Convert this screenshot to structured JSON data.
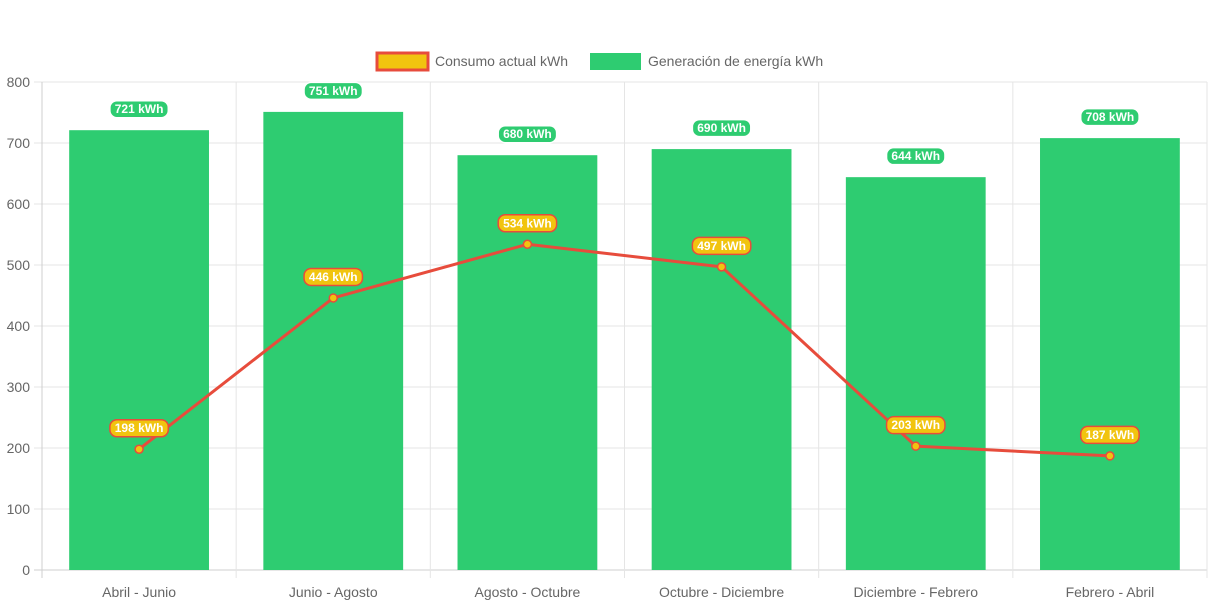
{
  "chart_data": {
    "type": "bar",
    "categories": [
      "Abril - Junio",
      "Junio - Agosto",
      "Agosto - Octubre",
      "Octubre - Diciembre",
      "Diciembre - Febrero",
      "Febrero - Abril"
    ],
    "series": [
      {
        "name": "Consumo actual kWh",
        "type": "line",
        "values": [
          198,
          446,
          534,
          497,
          203,
          187
        ],
        "labels": [
          "198 kWh",
          "446 kWh",
          "534 kWh",
          "497 kWh",
          "203 kWh",
          "187 kWh"
        ],
        "color": "#e74c3c",
        "fill_color": "#f1c40f"
      },
      {
        "name": "Generación de energía kWh",
        "type": "bar",
        "values": [
          721,
          751,
          680,
          690,
          644,
          708
        ],
        "labels": [
          "721 kWh",
          "751 kWh",
          "680 kWh",
          "690 kWh",
          "644 kWh",
          "708 kWh"
        ],
        "color": "#2ecc71"
      }
    ],
    "y_ticks": [
      "0",
      "100",
      "200",
      "300",
      "400",
      "500",
      "600",
      "700",
      "800"
    ],
    "ylim": [
      0,
      800
    ],
    "grid": true,
    "legend_position": "top-center",
    "title": "",
    "xlabel": "",
    "ylabel": ""
  }
}
